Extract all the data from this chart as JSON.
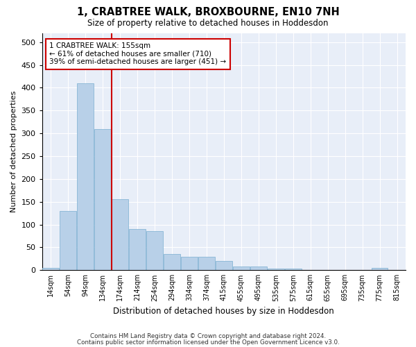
{
  "title": "1, CRABTREE WALK, BROXBOURNE, EN10 7NH",
  "subtitle": "Size of property relative to detached houses in Hoddesdon",
  "xlabel": "Distribution of detached houses by size in Hoddesdon",
  "ylabel": "Number of detached properties",
  "bar_color": "#b8d0e8",
  "bar_edge_color": "#7aaed0",
  "background_color": "#e8eef8",
  "grid_color": "#ffffff",
  "vline_color": "#cc0000",
  "vline_x_idx": 4,
  "annotation_text": "1 CRABTREE WALK: 155sqm\n← 61% of detached houses are smaller (710)\n39% of semi-detached houses are larger (451) →",
  "annotation_box_facecolor": "#ffffff",
  "annotation_box_edgecolor": "#cc0000",
  "categories": [
    "14sqm",
    "54sqm",
    "94sqm",
    "134sqm",
    "174sqm",
    "214sqm",
    "254sqm",
    "294sqm",
    "334sqm",
    "374sqm",
    "415sqm",
    "455sqm",
    "495sqm",
    "535sqm",
    "575sqm",
    "615sqm",
    "655sqm",
    "695sqm",
    "735sqm",
    "775sqm",
    "815sqm"
  ],
  "values": [
    5,
    130,
    410,
    310,
    155,
    90,
    85,
    35,
    30,
    30,
    20,
    8,
    8,
    3,
    3,
    0,
    0,
    0,
    0,
    5,
    0
  ],
  "ylim": [
    0,
    520
  ],
  "yticks": [
    0,
    50,
    100,
    150,
    200,
    250,
    300,
    350,
    400,
    450,
    500
  ],
  "footer_line1": "Contains HM Land Registry data © Crown copyright and database right 2024.",
  "footer_line2": "Contains public sector information licensed under the Open Government Licence v3.0."
}
